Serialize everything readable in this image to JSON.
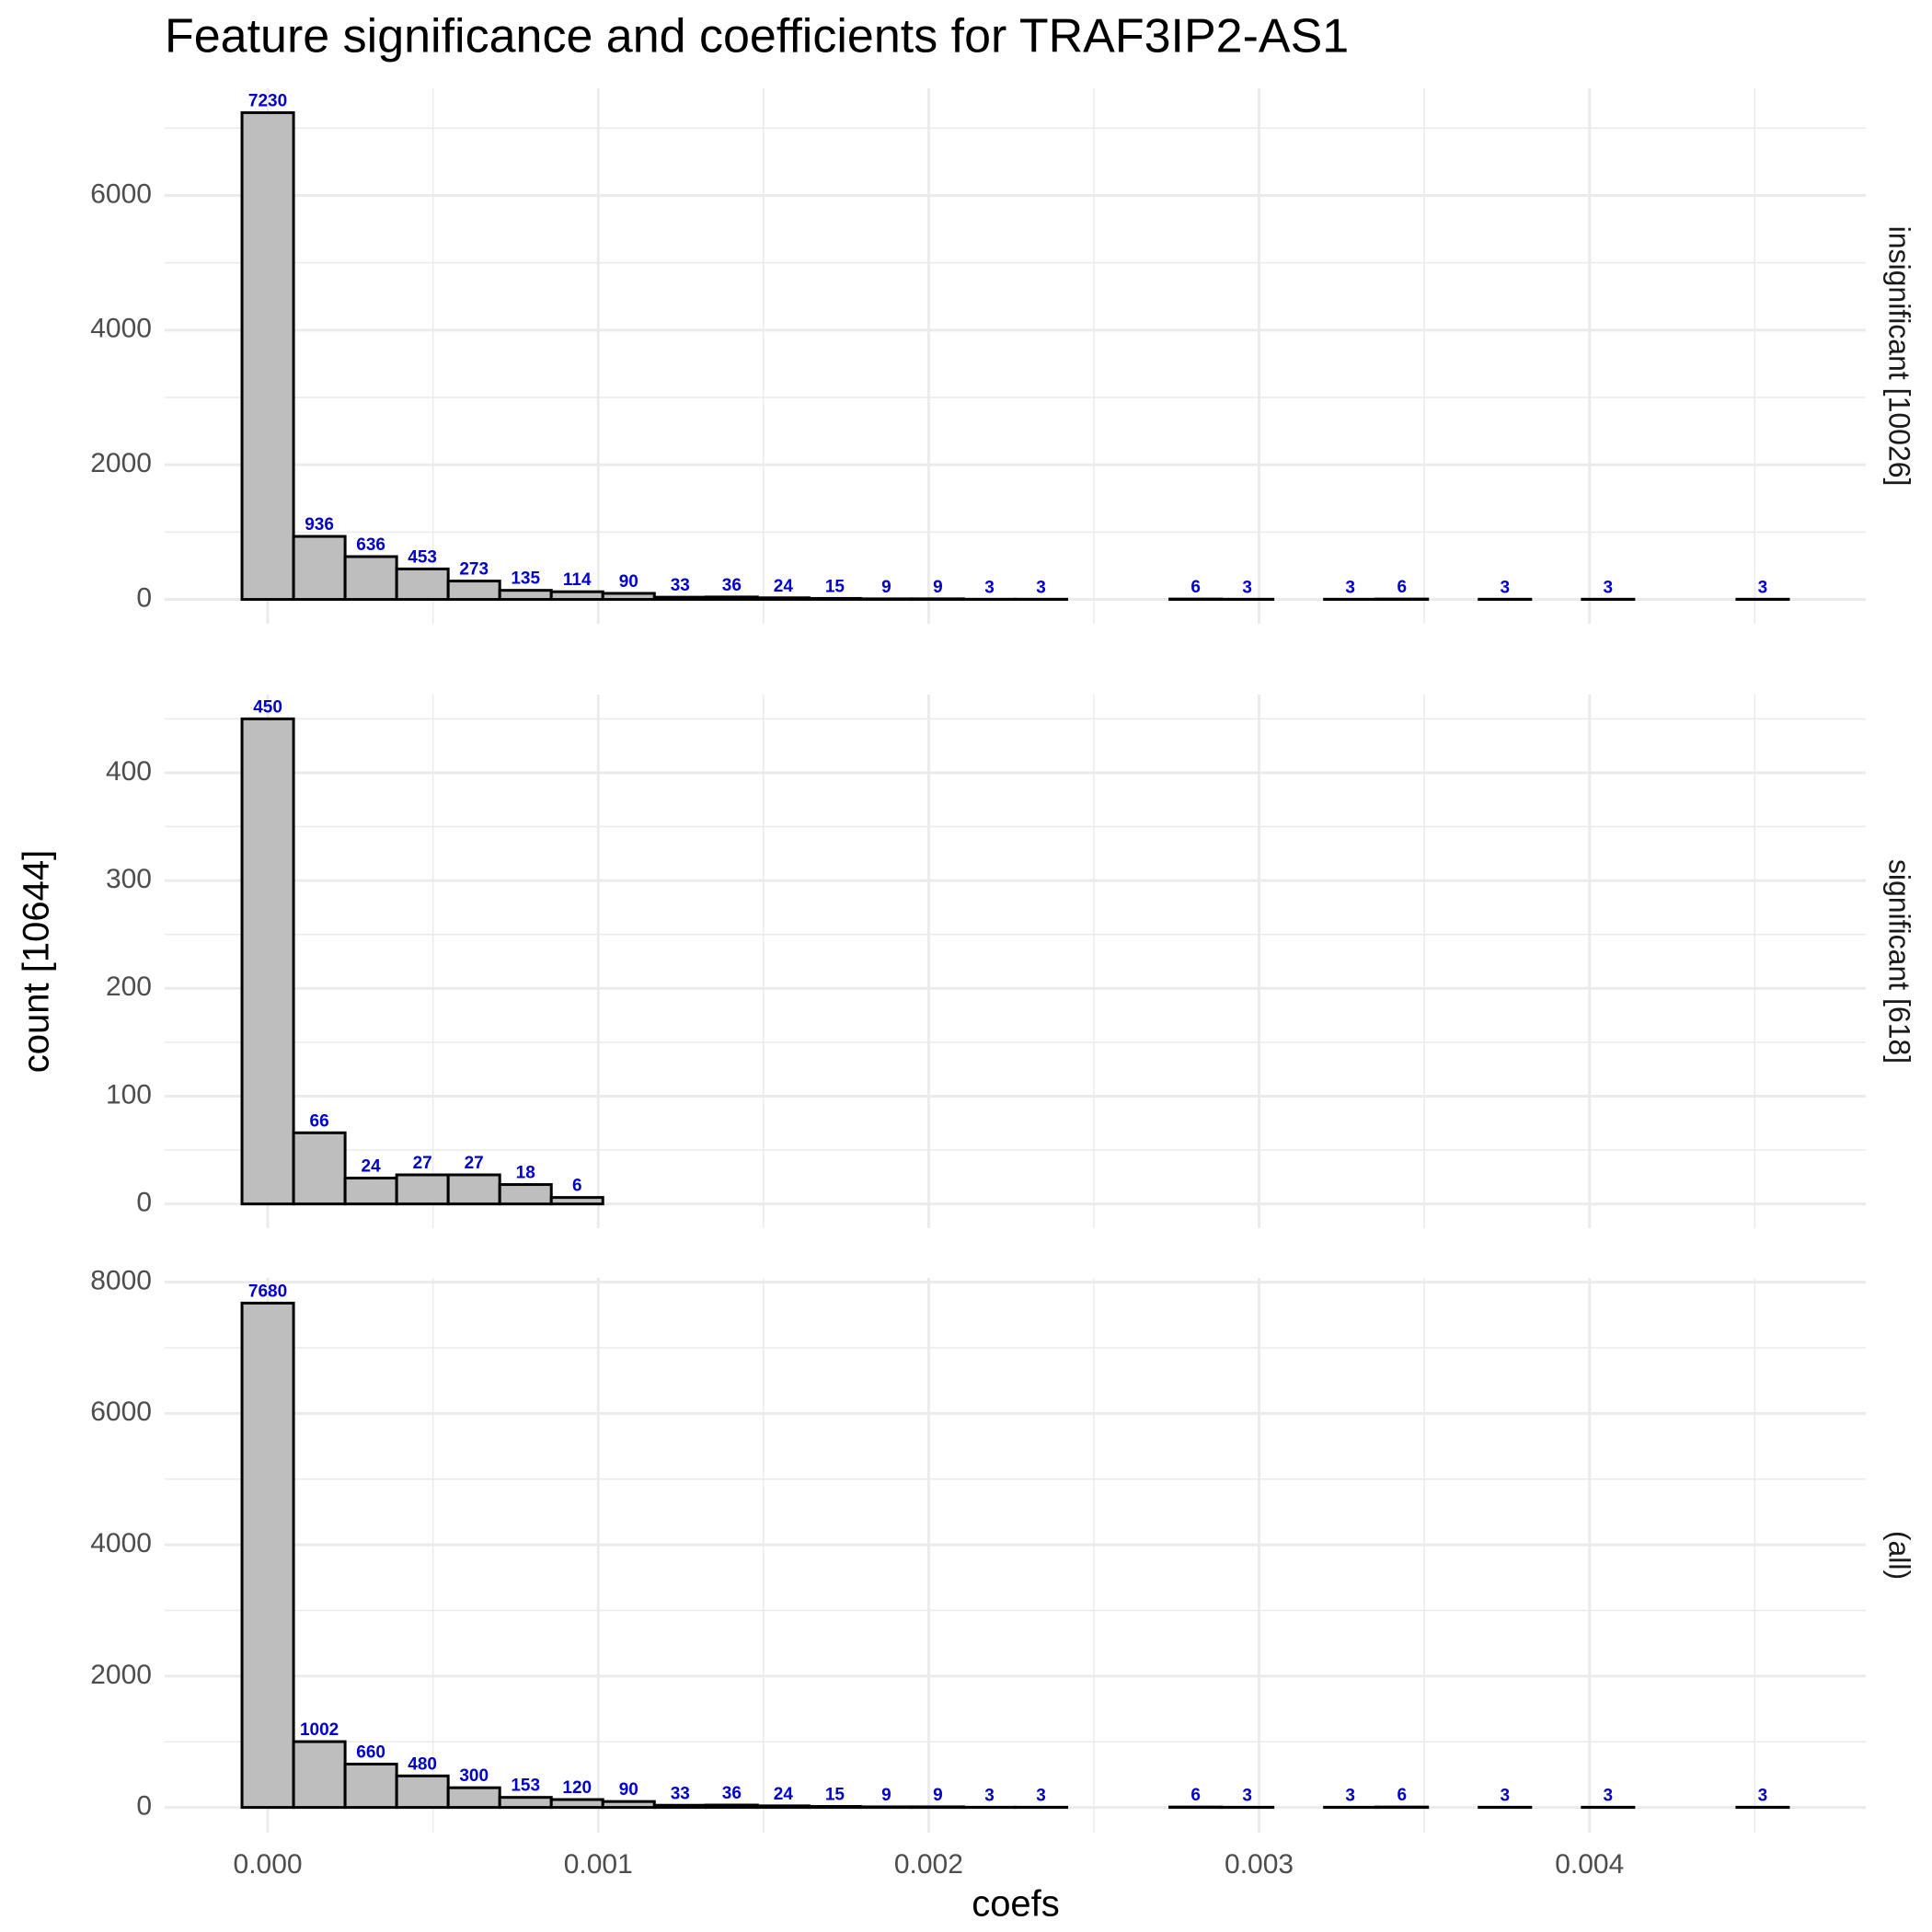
{
  "chart_data": {
    "type": "histogram",
    "title": "Feature significance and coefficients for TRAF3IP2-AS1",
    "xlabel": "coefs",
    "ylabel": "count [10644]",
    "bins": [
      -7.8e-05,
      7.8e-05,
      0.000234,
      0.00039,
      0.000546,
      0.000702,
      0.000858,
      0.001014,
      0.00117,
      0.001326,
      0.001482,
      0.001638,
      0.001794,
      0.00195,
      0.002106,
      0.002262,
      0.002418,
      0.002574,
      0.00273,
      0.002886,
      0.003042,
      0.003198,
      0.003354,
      0.00351,
      0.003666,
      0.003822,
      0.003978,
      0.004134,
      0.00429,
      0.004446,
      0.004602
    ],
    "xlim": [
      -0.000312,
      0.004836
    ],
    "xticks": [
      {
        "value": 0,
        "label": "0.000"
      },
      0.001,
      0.002,
      0.003,
      0.004
    ],
    "x_minor_ticks": [
      0.0005,
      0.0015,
      0.0025,
      0.0035,
      0.0045
    ],
    "color": "#bebebe",
    "edge_color": "#000000",
    "label_color": "#0000cc",
    "grid": true,
    "facets": [
      {
        "label": "insignificant [10026]",
        "values": [
          7230,
          936,
          636,
          453,
          273,
          135,
          114,
          90,
          33,
          36,
          24,
          15,
          9,
          9,
          3,
          3,
          0,
          0,
          6,
          3,
          0,
          3,
          6,
          0,
          3,
          0,
          3,
          0,
          0,
          3
        ],
        "ylim": [
          -361.5,
          7591.5
        ],
        "yticks": [
          0,
          2000,
          4000,
          6000
        ],
        "y_minor_ticks": [
          1000,
          3000,
          5000,
          7000
        ]
      },
      {
        "label": "significant [618]",
        "values": [
          450,
          66,
          24,
          27,
          27,
          18,
          6,
          0,
          0,
          0,
          0,
          0,
          0,
          0,
          0,
          0,
          0,
          0,
          0,
          0,
          0,
          0,
          0,
          0,
          0,
          0,
          0,
          0,
          0,
          0
        ],
        "ylim": [
          -22.5,
          472.5
        ],
        "yticks": [
          0,
          100,
          200,
          300,
          400
        ],
        "y_minor_ticks": [
          50,
          150,
          250,
          350,
          450
        ]
      },
      {
        "label": "(all)",
        "values": [
          7680,
          1002,
          660,
          480,
          300,
          153,
          120,
          90,
          33,
          36,
          24,
          15,
          9,
          9,
          3,
          3,
          0,
          0,
          6,
          3,
          0,
          3,
          6,
          0,
          3,
          0,
          3,
          0,
          0,
          3
        ],
        "ylim": [
          -384,
          8064
        ],
        "yticks": [
          0,
          2000,
          4000,
          6000,
          8000
        ],
        "y_minor_ticks": [
          1000,
          3000,
          5000,
          7000
        ]
      }
    ]
  }
}
